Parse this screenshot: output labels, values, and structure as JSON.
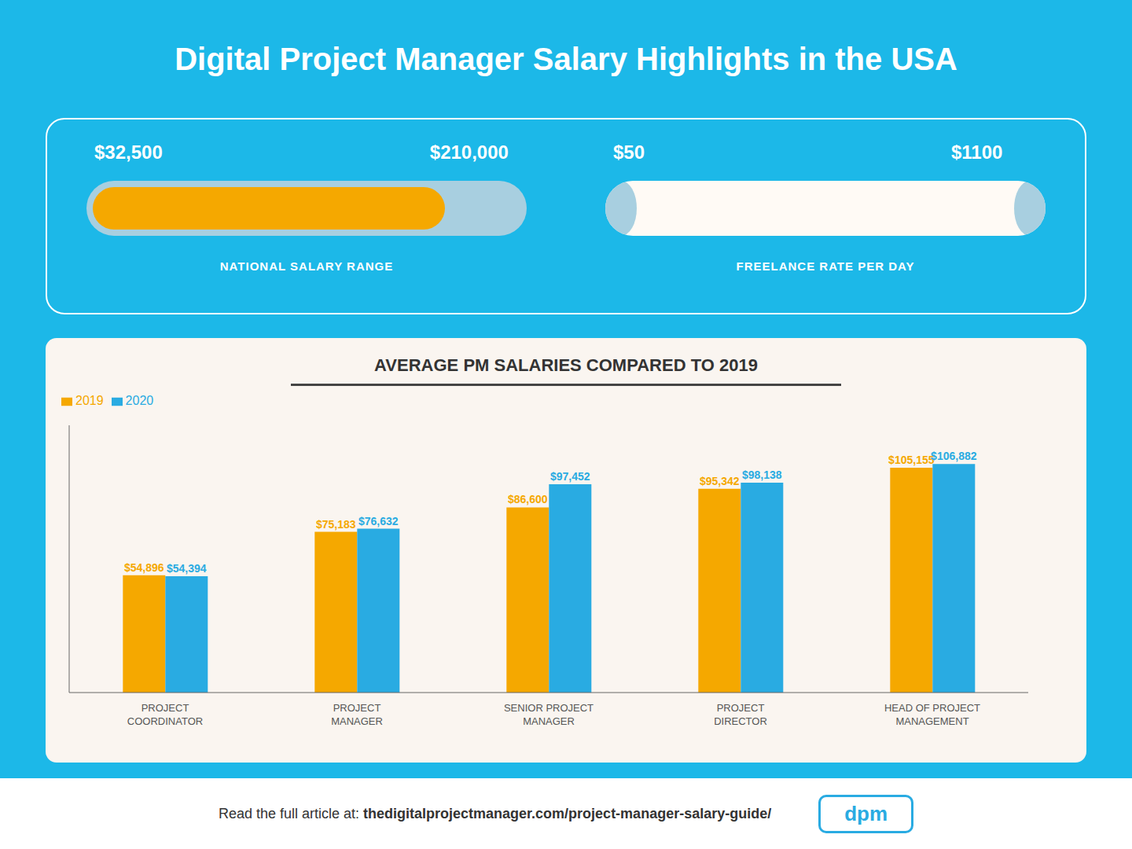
{
  "chart_data": {
    "type": "bar",
    "title": "Digital Project Manager Salary Highlights in the USA",
    "subtitle": "AVERAGE PM SALARIES COMPARED TO 2019",
    "annotations": [
      "$32,500",
      "$210,000",
      "NATIONAL SALARY RANGE",
      "$50",
      "$1100",
      "FREELANCE RATE PER DAY",
      "Read the full article at:",
      "thedigitalprojectmanager.com/project-manager-salary-guide/",
      "dpm"
    ],
    "categories": [
      "PROJECT\nCOORDINATOR",
      "PROJECT\nMANAGER",
      "SENIOR PROJECT\nMANAGER",
      "PROJECT\nDIRECTOR",
      "HEAD OF PROJECT\nMANAGEMENT"
    ],
    "series": [
      {
        "name": "2019",
        "color": "#f5a800",
        "values": [
          54896,
          75183,
          86600,
          95342,
          105155
        ],
        "value_labels": [
          "$54,896",
          "$75,183",
          "$86,600",
          "$95,342",
          "$105,155"
        ]
      },
      {
        "name": "2020",
        "color": "#29abe2",
        "values": [
          54394,
          76632,
          97452,
          98138,
          106882
        ],
        "value_labels": [
          "$54,394",
          "$76,632",
          "$97,452",
          "$98,138",
          "$106,882"
        ]
      }
    ],
    "ylim": [
      0,
      125000
    ],
    "yticks": [],
    "grid": false,
    "legend": "upper left",
    "data_labels": true,
    "tick_labels": "x"
  }
}
